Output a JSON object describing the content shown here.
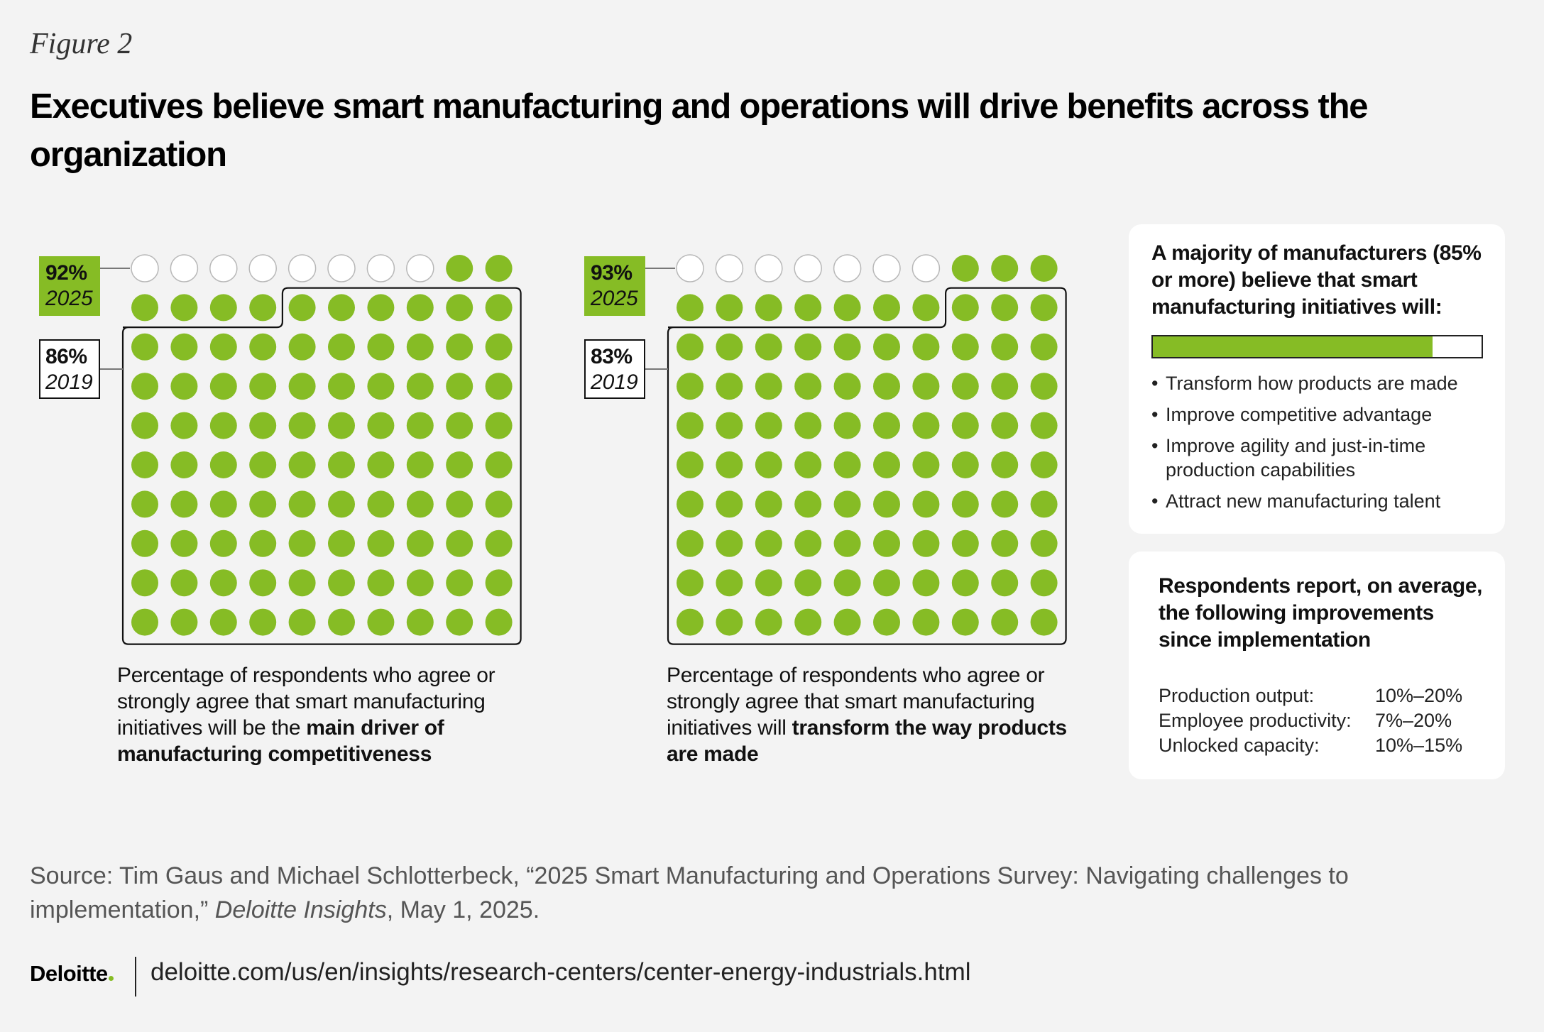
{
  "figure_label": "Figure 2",
  "title": "Executives believe smart manufacturing and operations will drive benefits across the organization",
  "colors": {
    "accent": "#86bc25",
    "background": "#f3f3f3",
    "empty_dot": "#ffffff"
  },
  "chart_data": [
    {
      "type": "waffle",
      "grid": {
        "rows": 10,
        "cols": 10
      },
      "series": [
        {
          "name": "2025",
          "value": 92,
          "label": "92%",
          "year": "2025"
        },
        {
          "name": "2019",
          "value": 86,
          "label": "86%",
          "year": "2019"
        }
      ],
      "caption_plain": "Percentage of respondents who agree or strongly agree that smart manufacturing initiatives will be the ",
      "caption_bold": "main driver of manufacturing competitiveness"
    },
    {
      "type": "waffle",
      "grid": {
        "rows": 10,
        "cols": 10
      },
      "series": [
        {
          "name": "2025",
          "value": 93,
          "label": "93%",
          "year": "2025"
        },
        {
          "name": "2019",
          "value": 83,
          "label": "83%",
          "year": "2019"
        }
      ],
      "caption_plain": "Percentage of respondents who agree or strongly agree that smart manufacturing initiatives will ",
      "caption_bold": "transform the way products are made"
    }
  ],
  "card1": {
    "heading": "A majority of manufacturers (85% or more) believe that smart manufacturing initiatives will:",
    "bar_value": 85,
    "items": [
      "Transform how products are made",
      "Improve competitive advantage",
      "Improve agility and just-in-time production capabilities",
      "Attract new manufacturing talent"
    ]
  },
  "card2": {
    "heading": "Respondents report, on average, the following improvements since implementation",
    "rows": [
      {
        "label": "Production output:",
        "value": "10%–20%"
      },
      {
        "label": "Employee productivity:",
        "value": "7%–20%"
      },
      {
        "label": "Unlocked capacity:",
        "value": "10%–15%"
      }
    ]
  },
  "source": {
    "text": "Source: Tim Gaus and Michael Schlotterbeck, “2025 Smart Manufacturing and Operations Survey: Navigating challenges to implementation,”",
    "publication": "Deloitte Insights",
    "date": ", May 1, 2025."
  },
  "footer": {
    "logo": "Deloitte",
    "url": "deloitte.com/us/en/insights/research-centers/center-energy-industrials.html"
  }
}
